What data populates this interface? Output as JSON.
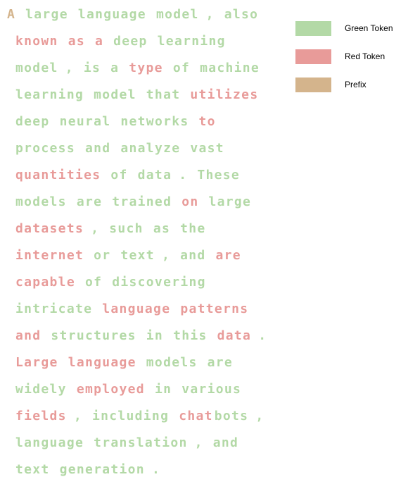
{
  "colors": {
    "green": "#b3d9a6",
    "red": "#e89b99",
    "prefix": "#d4b48c"
  },
  "legend": [
    {
      "label": "Green Token",
      "kind": "green"
    },
    {
      "label": "Red Token",
      "kind": "red"
    },
    {
      "label": "Prefix",
      "kind": "prefix"
    }
  ],
  "lines": [
    [
      [
        "A",
        "prefix"
      ],
      [
        "large",
        "green"
      ],
      [
        "language",
        "green"
      ],
      [
        "model",
        "green"
      ],
      [
        ",",
        "green"
      ],
      [
        "also",
        "green"
      ]
    ],
    [
      [
        "known",
        "red"
      ],
      [
        "as",
        "red"
      ],
      [
        "a",
        "red"
      ],
      [
        "deep",
        "green"
      ],
      [
        "learning",
        "green"
      ]
    ],
    [
      [
        "model",
        "green"
      ],
      [
        ",",
        "green"
      ],
      [
        "is",
        "green"
      ],
      [
        "a",
        "green"
      ],
      [
        "type",
        "red"
      ],
      [
        "of",
        "green"
      ],
      [
        "machine",
        "green"
      ]
    ],
    [
      [
        "learning",
        "green"
      ],
      [
        "model",
        "green"
      ],
      [
        "that",
        "green"
      ],
      [
        "utilizes",
        "red"
      ]
    ],
    [
      [
        "deep",
        "green"
      ],
      [
        "neural",
        "green"
      ],
      [
        "networks",
        "green"
      ],
      [
        "to",
        "red"
      ]
    ],
    [
      [
        "process",
        "green"
      ],
      [
        "and",
        "green"
      ],
      [
        "analyze",
        "green"
      ],
      [
        "vast",
        "green"
      ]
    ],
    [
      [
        "quantities",
        "red"
      ],
      [
        "of",
        "green"
      ],
      [
        "data",
        "green"
      ],
      [
        ".",
        "green"
      ],
      [
        "These",
        "green"
      ]
    ],
    [
      [
        "models",
        "green"
      ],
      [
        "are",
        "green"
      ],
      [
        "trained",
        "green"
      ],
      [
        "on",
        "red"
      ],
      [
        "large",
        "green"
      ]
    ],
    [
      [
        "datasets",
        "red"
      ],
      [
        ",",
        "green"
      ],
      [
        "such",
        "green"
      ],
      [
        "as",
        "green"
      ],
      [
        "the",
        "green"
      ]
    ],
    [
      [
        "internet",
        "red"
      ],
      [
        "or",
        "green"
      ],
      [
        "text",
        "green"
      ],
      [
        ",",
        "green"
      ],
      [
        "and",
        "green"
      ],
      [
        "are",
        "red"
      ]
    ],
    [
      [
        "capable",
        "red"
      ],
      [
        "of",
        "green"
      ],
      [
        "discovering",
        "green"
      ]
    ],
    [
      [
        "intricate",
        "green"
      ],
      [
        "language",
        "red"
      ],
      [
        "patterns",
        "red"
      ]
    ],
    [
      [
        "and",
        "red"
      ],
      [
        "structures",
        "green"
      ],
      [
        "in",
        "green"
      ],
      [
        "this",
        "green"
      ],
      [
        "data",
        "red"
      ],
      [
        ".",
        "green"
      ]
    ],
    [
      [
        "Large",
        "red"
      ],
      [
        "language",
        "red"
      ],
      [
        "models",
        "green"
      ],
      [
        "are",
        "green"
      ]
    ],
    [
      [
        "widely",
        "green"
      ],
      [
        "employed",
        "red"
      ],
      [
        "in",
        "green"
      ],
      [
        "various",
        "green"
      ]
    ],
    [
      [
        "fields",
        "red"
      ],
      [
        ",",
        "green"
      ],
      [
        "including",
        "green"
      ],
      [
        "chat",
        "red"
      ],
      [
        "bots",
        "green"
      ],
      [
        ",",
        "green"
      ]
    ],
    [
      [
        "language",
        "green"
      ],
      [
        "translation",
        "green"
      ],
      [
        ",",
        "green"
      ],
      [
        "and",
        "green"
      ]
    ],
    [
      [
        "text",
        "green"
      ],
      [
        "generation",
        "green"
      ],
      [
        ".",
        "green"
      ]
    ]
  ]
}
